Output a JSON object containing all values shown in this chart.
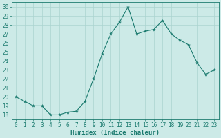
{
  "x": [
    0,
    1,
    2,
    3,
    4,
    5,
    6,
    7,
    8,
    9,
    10,
    11,
    12,
    13,
    14,
    15,
    16,
    17,
    18,
    19,
    20,
    21,
    22,
    23
  ],
  "y": [
    20,
    19.5,
    19,
    19,
    18,
    18,
    18.3,
    18.4,
    19.5,
    22,
    24.8,
    27,
    28.3,
    30,
    27,
    27.3,
    27.5,
    28.5,
    27,
    26.3,
    25.8,
    23.8,
    22.5,
    23
  ],
  "line_color": "#1a7a6e",
  "marker": "*",
  "marker_size": 3,
  "bg_color": "#cceae7",
  "grid_color": "#aad4d0",
  "xlabel": "Humidex (Indice chaleur)",
  "ylabel": "",
  "ylim": [
    17.5,
    30.5
  ],
  "xlim": [
    -0.5,
    23.5
  ],
  "yticks": [
    18,
    19,
    20,
    21,
    22,
    23,
    24,
    25,
    26,
    27,
    28,
    29,
    30
  ],
  "xticks": [
    0,
    1,
    2,
    3,
    4,
    5,
    6,
    7,
    8,
    9,
    10,
    11,
    12,
    13,
    14,
    15,
    16,
    17,
    18,
    19,
    20,
    21,
    22,
    23
  ],
  "xlabel_fontsize": 6.5,
  "tick_fontsize": 5.5
}
